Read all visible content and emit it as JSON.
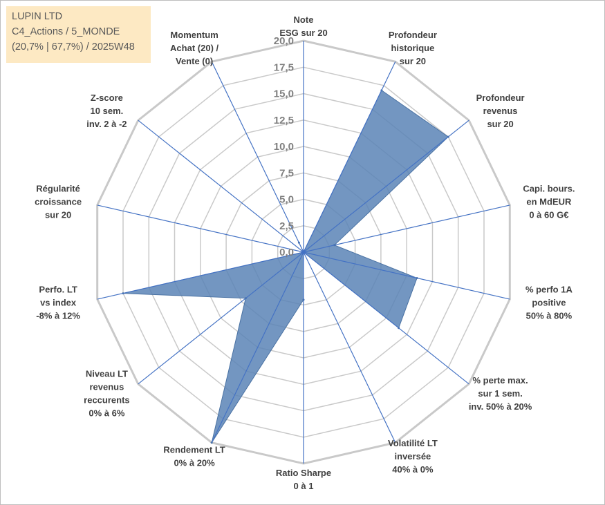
{
  "header": {
    "company": "LUPIN LTD",
    "category": "C4_Actions / 5_MONDE",
    "summary": "(20,7% | 67,7%) / 2025W48"
  },
  "chart_data": {
    "type": "radar",
    "title": "",
    "rlim": [
      0,
      20
    ],
    "ticks": [
      "0,0",
      "2,5",
      "5,0",
      "7,5",
      "10,0",
      "12,5",
      "15,0",
      "17,5",
      "20,0"
    ],
    "grid": true,
    "colors": {
      "fill": "#5b84b6",
      "fill_edge": "#4a72a3",
      "spoke": "#4472c4",
      "grid": "#c9c9c9"
    },
    "axes": [
      {
        "lines": [
          "Note",
          "ESG sur 20"
        ]
      },
      {
        "lines": [
          "Profondeur",
          "historique",
          "sur 20"
        ]
      },
      {
        "lines": [
          "Profondeur",
          "revenus",
          "sur 20"
        ]
      },
      {
        "lines": [
          "Capi. bours.",
          "en MdEUR",
          "0 à 60 G€"
        ]
      },
      {
        "lines": [
          "% perfo 1A",
          "positive",
          "50% à 80%"
        ]
      },
      {
        "lines": [
          "% perte max.",
          "sur 1 sem.",
          "inv. 50% à 20%"
        ]
      },
      {
        "lines": [
          "Volatilité LT",
          "inversée",
          "40% à 0%"
        ]
      },
      {
        "lines": [
          "Ratio Sharpe",
          "0 à 1"
        ]
      },
      {
        "lines": [
          "Rendement LT",
          "0% à 20%"
        ]
      },
      {
        "lines": [
          "Niveau LT",
          "revenus",
          "reccurents",
          "0% à 6%"
        ]
      },
      {
        "lines": [
          "Perfo. LT",
          "vs index",
          "-8% à 12%"
        ]
      },
      {
        "lines": [
          "Régularité",
          "croissance",
          "sur 20"
        ]
      },
      {
        "lines": [
          "Z-score",
          "10 sem.",
          "inv. 2 à -2"
        ]
      },
      {
        "lines": [
          "Momentum",
          "Achat (20) /",
          "Vente (0)"
        ]
      }
    ],
    "values": [
      0.0,
      17.0,
      17.5,
      3.0,
      11.0,
      11.5,
      0.0,
      4.5,
      20.0,
      7.0,
      17.5,
      0.0,
      0.0,
      1.0
    ]
  }
}
